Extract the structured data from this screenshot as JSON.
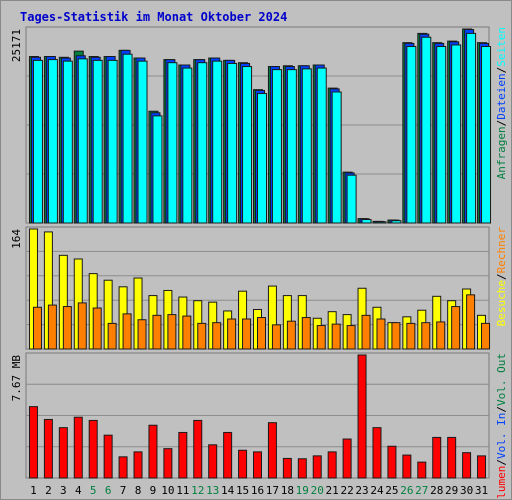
{
  "title": "Tages-Statistik im Monat Oktober 2024",
  "colors": {
    "title": "#0000cc",
    "background": "#c0c0c0",
    "grid": "#8c8c8c",
    "hits": "#008040",
    "files": "#0040ff",
    "pages": "#00ffff",
    "visits": "#ffff00",
    "sites": "#ff8000",
    "kbytes": "#ff0000",
    "weekend_day": "#008040",
    "weekday": "#000000"
  },
  "chart_data": [
    {
      "type": "bar",
      "panel": "top",
      "max_label": "25171",
      "ylim": [
        0,
        25171
      ],
      "categories": [
        "1",
        "2",
        "3",
        "4",
        "5",
        "6",
        "7",
        "8",
        "9",
        "10",
        "11",
        "12",
        "13",
        "14",
        "15",
        "16",
        "17",
        "18",
        "19",
        "20",
        "21",
        "22",
        "23",
        "24",
        "25",
        "26",
        "27",
        "28",
        "29",
        "30",
        "31"
      ],
      "series": [
        {
          "name": "Anfragen",
          "color": "#008040",
          "values": [
            21600,
            21600,
            21500,
            22300,
            21600,
            21600,
            22400,
            21400,
            14500,
            21200,
            20500,
            21200,
            21400,
            21100,
            20800,
            17300,
            20300,
            20400,
            20400,
            20500,
            17500,
            6600,
            570,
            210,
            380,
            23400,
            24600,
            23400,
            23600,
            25171,
            23400
          ]
        },
        {
          "name": "Dateien",
          "color": "#0040ff",
          "values": [
            21500,
            21600,
            21400,
            21700,
            21500,
            21600,
            22400,
            21400,
            14300,
            21200,
            20500,
            21200,
            21400,
            21100,
            20700,
            17200,
            20300,
            20300,
            20400,
            20500,
            17400,
            6500,
            550,
            200,
            370,
            23300,
            24500,
            23300,
            23500,
            25100,
            23300
          ]
        },
        {
          "name": "Seiten",
          "color": "#00ffff",
          "values": [
            21100,
            21200,
            21000,
            21300,
            21100,
            21100,
            21900,
            21000,
            13900,
            20800,
            20100,
            20800,
            21000,
            20700,
            20300,
            16800,
            19900,
            19900,
            20000,
            20100,
            17000,
            6200,
            450,
            150,
            300,
            22900,
            24100,
            22900,
            23100,
            24600,
            22900
          ]
        }
      ]
    },
    {
      "type": "bar",
      "panel": "middle",
      "max_label": "164",
      "ylim": [
        0,
        164
      ],
      "categories": [
        "1",
        "2",
        "3",
        "4",
        "5",
        "6",
        "7",
        "8",
        "9",
        "10",
        "11",
        "12",
        "13",
        "14",
        "15",
        "16",
        "17",
        "18",
        "19",
        "20",
        "21",
        "22",
        "23",
        "24",
        "25",
        "26",
        "27",
        "28",
        "29",
        "30",
        "31"
      ],
      "series": [
        {
          "name": "Besuche",
          "color": "#ffff00",
          "values": [
            164,
            160,
            128,
            123,
            103,
            94,
            85,
            97,
            73,
            80,
            71,
            66,
            64,
            52,
            79,
            54,
            86,
            73,
            73,
            42,
            51,
            47,
            83,
            57,
            36,
            44,
            53,
            72,
            66,
            82,
            46
          ]
        },
        {
          "name": "Rechner",
          "color": "#ff8000",
          "values": [
            57,
            60,
            58,
            63,
            56,
            35,
            48,
            40,
            46,
            47,
            45,
            35,
            36,
            41,
            41,
            43,
            33,
            38,
            43,
            32,
            34,
            32,
            46,
            41,
            36,
            35,
            36,
            37,
            58,
            74,
            35
          ]
        }
      ]
    },
    {
      "type": "bar",
      "panel": "bottom",
      "max_label": "7.67 MB",
      "ylim": [
        0,
        7.67
      ],
      "categories": [
        "1",
        "2",
        "3",
        "4",
        "5",
        "6",
        "7",
        "8",
        "9",
        "10",
        "11",
        "12",
        "13",
        "14",
        "15",
        "16",
        "17",
        "18",
        "19",
        "20",
        "21",
        "22",
        "23",
        "24",
        "25",
        "26",
        "27",
        "28",
        "29",
        "30",
        "31"
      ],
      "series": [
        {
          "name": "Volumen",
          "color": "#ff0000",
          "values": [
            4.45,
            3.65,
            3.14,
            3.79,
            3.59,
            2.67,
            1.32,
            1.63,
            3.29,
            1.83,
            2.84,
            3.59,
            2.07,
            2.84,
            1.73,
            1.63,
            3.45,
            1.22,
            1.2,
            1.38,
            1.63,
            2.43,
            7.67,
            3.14,
            1.98,
            1.43,
            0.99,
            2.53,
            2.53,
            1.58,
            1.38
          ]
        }
      ]
    }
  ],
  "x_labels": [
    {
      "text": "1",
      "weekend": false
    },
    {
      "text": "2",
      "weekend": false
    },
    {
      "text": "3",
      "weekend": false
    },
    {
      "text": "4",
      "weekend": false
    },
    {
      "text": "5",
      "weekend": true
    },
    {
      "text": "6",
      "weekend": true
    },
    {
      "text": "7",
      "weekend": false
    },
    {
      "text": "8",
      "weekend": false
    },
    {
      "text": "9",
      "weekend": false
    },
    {
      "text": "10",
      "weekend": false
    },
    {
      "text": "11",
      "weekend": false
    },
    {
      "text": "12",
      "weekend": true
    },
    {
      "text": "13",
      "weekend": true
    },
    {
      "text": "14",
      "weekend": false
    },
    {
      "text": "15",
      "weekend": false
    },
    {
      "text": "16",
      "weekend": false
    },
    {
      "text": "17",
      "weekend": false
    },
    {
      "text": "18",
      "weekend": false
    },
    {
      "text": "19",
      "weekend": true
    },
    {
      "text": "20",
      "weekend": true
    },
    {
      "text": "21",
      "weekend": false
    },
    {
      "text": "22",
      "weekend": false
    },
    {
      "text": "23",
      "weekend": false
    },
    {
      "text": "24",
      "weekend": false
    },
    {
      "text": "25",
      "weekend": false
    },
    {
      "text": "26",
      "weekend": true
    },
    {
      "text": "27",
      "weekend": true
    },
    {
      "text": "28",
      "weekend": false
    },
    {
      "text": "29",
      "weekend": false
    },
    {
      "text": "30",
      "weekend": false
    },
    {
      "text": "31",
      "weekend": false
    }
  ],
  "legends": {
    "top": [
      {
        "text": "Anfragen",
        "color": "#008040"
      },
      {
        "text": "/",
        "color": "#000000"
      },
      {
        "text": "Dateien",
        "color": "#0040ff"
      },
      {
        "text": "/",
        "color": "#000000"
      },
      {
        "text": "Seiten",
        "color": "#00ffff"
      }
    ],
    "middle": [
      {
        "text": "Besuche",
        "color": "#ffff00"
      },
      {
        "text": "/",
        "color": "#000000"
      },
      {
        "text": "Rechner",
        "color": "#ff8000"
      }
    ],
    "bottom": [
      {
        "text": "Volumen",
        "color": "#ff0000"
      },
      {
        "text": "/",
        "color": "#000000"
      },
      {
        "text": "Vol. In",
        "color": "#0040ff"
      },
      {
        "text": "/",
        "color": "#000000"
      },
      {
        "text": "Vol. Out",
        "color": "#008040"
      }
    ]
  }
}
